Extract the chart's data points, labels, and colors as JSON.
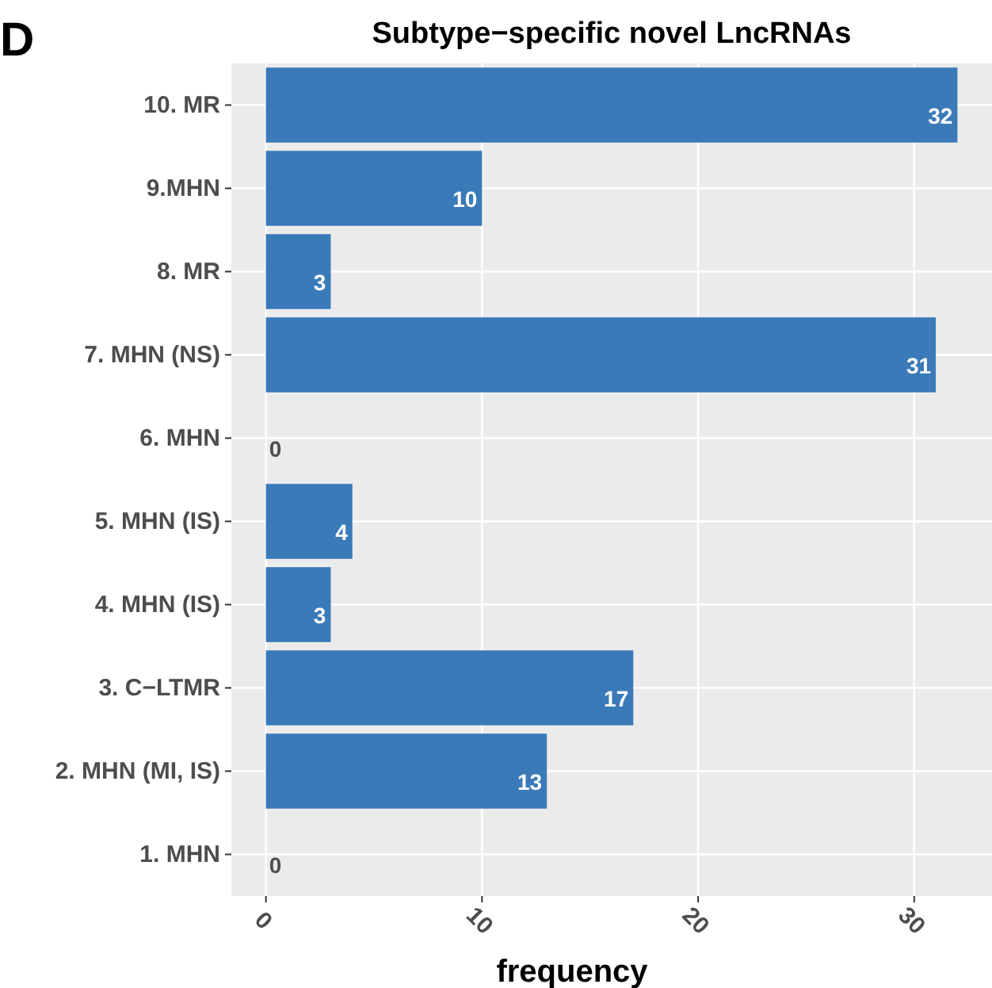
{
  "chart_data": {
    "type": "bar",
    "orientation": "horizontal",
    "title": "Subtype−specific novel LncRNAs",
    "xlabel": "frequency",
    "annotations": [
      "D"
    ],
    "categories": [
      "10. MR",
      "9.MHN",
      "8. MR",
      "7. MHN (NS)",
      "6. MHN",
      "5. MHN (IS)",
      "4. MHN (IS)",
      "3. C−LTMR",
      "2. MHN (MI, IS)",
      "1. MHN"
    ],
    "values": [
      32,
      10,
      3,
      31,
      0,
      4,
      3,
      17,
      13,
      0
    ],
    "color": "#3a7ab8",
    "data_labels": true,
    "xlim": [
      -1.6,
      33.6
    ],
    "xticks": [
      0,
      10,
      20,
      30
    ],
    "grid": true
  }
}
